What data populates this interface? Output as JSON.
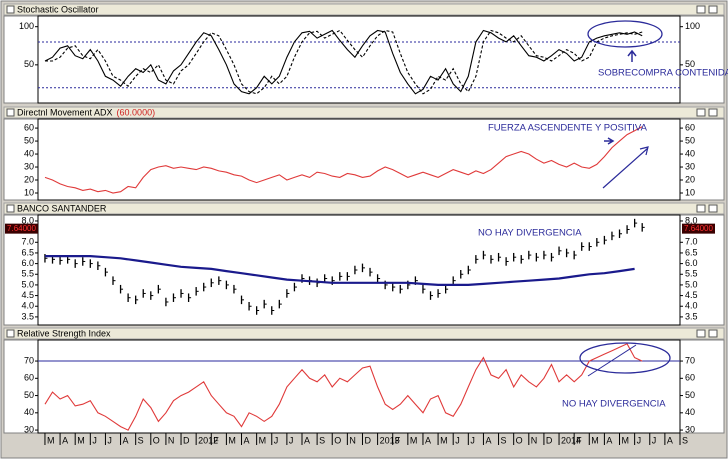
{
  "chart_data": [
    {
      "type": "line",
      "title": "Stochastic Oscillator",
      "x": [
        0,
        0.5,
        1,
        1.5,
        2,
        2.5,
        3,
        3.5,
        4,
        4.5,
        5,
        5.5,
        6,
        6.5,
        7,
        7.5,
        8,
        8.5,
        9,
        9.5,
        10,
        10.5,
        11,
        11.5,
        12,
        12.5,
        13,
        13.5,
        14,
        14.5,
        15,
        15.5,
        16,
        16.5,
        17,
        17.5,
        18,
        18.5,
        19,
        19.5,
        20,
        20.5,
        21,
        21.5,
        22,
        22.5,
        23,
        23.5,
        24,
        24.5,
        25,
        25.5,
        26,
        26.5,
        27,
        27.5,
        28,
        28.5,
        29,
        29.5,
        30,
        30.5,
        31,
        31.5,
        32,
        32.5,
        33,
        33.5,
        34,
        34.5,
        35,
        35.5,
        36,
        36.5,
        37,
        37.5,
        38,
        38.5,
        39,
        39.5
      ],
      "series": [
        {
          "color": "#000000",
          "dash": false,
          "values": [
            55,
            60,
            72,
            75,
            62,
            58,
            70,
            55,
            35,
            30,
            22,
            35,
            45,
            40,
            50,
            30,
            25,
            42,
            50,
            65,
            80,
            92,
            88,
            70,
            50,
            25,
            15,
            12,
            20,
            35,
            25,
            35,
            60,
            80,
            92,
            94,
            85,
            90,
            95,
            82,
            70,
            60,
            75,
            88,
            95,
            93,
            65,
            40,
            25,
            12,
            18,
            35,
            30,
            45,
            25,
            15,
            35,
            80,
            95,
            92,
            85,
            80,
            88,
            75,
            62,
            60,
            55,
            62,
            70,
            65,
            55,
            60,
            80,
            85,
            88,
            90,
            92,
            90,
            93,
            88
          ]
        },
        {
          "color": "#000000",
          "dash": true,
          "values": [
            55,
            55,
            60,
            72,
            75,
            62,
            58,
            70,
            55,
            35,
            30,
            22,
            35,
            45,
            40,
            50,
            30,
            25,
            42,
            50,
            65,
            80,
            92,
            88,
            70,
            50,
            25,
            15,
            12,
            20,
            35,
            25,
            35,
            60,
            80,
            92,
            94,
            85,
            90,
            95,
            82,
            70,
            60,
            75,
            88,
            95,
            93,
            65,
            40,
            25,
            12,
            18,
            35,
            30,
            45,
            25,
            15,
            35,
            80,
            95,
            92,
            85,
            80,
            88,
            75,
            62,
            60,
            55,
            62,
            70,
            65,
            55,
            60,
            80,
            85,
            88,
            90,
            92,
            90,
            93
          ]
        }
      ],
      "hlines": [
        80,
        20
      ],
      "hline_color": "#2a2a9c",
      "xlim": [
        -0.46,
        42
      ],
      "ylim": [
        0,
        114
      ],
      "yticks": [
        100,
        50
      ],
      "annotations": [
        {
          "text": "SOBRECOMPRA CONTENIDA"
        }
      ]
    },
    {
      "type": "line",
      "title": "Directnl Movement ADX",
      "subtitle": "(60.0000)",
      "x": [
        0,
        0.5,
        1,
        1.5,
        2,
        2.5,
        3,
        3.5,
        4,
        4.5,
        5,
        5.5,
        6,
        6.5,
        7,
        7.5,
        8,
        8.5,
        9,
        9.5,
        10,
        10.5,
        11,
        11.5,
        12,
        12.5,
        13,
        13.5,
        14,
        14.5,
        15,
        15.5,
        16,
        16.5,
        17,
        17.5,
        18,
        18.5,
        19,
        19.5,
        20,
        20.5,
        21,
        21.5,
        22,
        22.5,
        23,
        23.5,
        24,
        24.5,
        25,
        25.5,
        26,
        26.5,
        27,
        27.5,
        28,
        28.5,
        29,
        29.5,
        30,
        30.5,
        31,
        31.5,
        32,
        32.5,
        33,
        33.5,
        34,
        34.5,
        35,
        35.5,
        36,
        36.5,
        37,
        37.5,
        38,
        38.5,
        39,
        39.5
      ],
      "series": [
        {
          "color": "#e03a3a",
          "dash": false,
          "values": [
            22,
            20,
            17,
            15,
            14,
            12,
            13,
            11,
            12,
            10,
            11,
            15,
            14,
            22,
            28,
            30,
            31,
            29,
            30,
            29,
            28,
            30,
            29,
            27,
            26,
            24,
            23,
            20,
            18,
            20,
            22,
            24,
            20,
            22,
            24,
            22,
            26,
            25,
            23,
            22,
            25,
            24,
            22,
            23,
            27,
            30,
            28,
            25,
            22,
            24,
            26,
            24,
            22,
            25,
            28,
            26,
            24,
            27,
            25,
            28,
            33,
            38,
            40,
            42,
            40,
            36,
            33,
            35,
            32,
            30,
            33,
            30,
            29,
            32,
            38,
            45,
            50,
            55,
            58,
            61
          ]
        }
      ],
      "xlim": [
        -0.46,
        42
      ],
      "ylim": [
        4.6,
        67
      ],
      "yticks": [
        60,
        50,
        40,
        30,
        20,
        10
      ],
      "annotations": [
        {
          "text": "FUERZA ASCENDENTE Y POSITIVA"
        }
      ]
    },
    {
      "type": "range_bar",
      "title": "BANCO SANTANDER",
      "color": "#000000",
      "x": [
        0,
        0.5,
        1,
        1.5,
        2,
        2.5,
        3,
        3.5,
        4,
        4.5,
        5,
        5.5,
        6,
        6.5,
        7,
        7.5,
        8,
        8.5,
        9,
        9.5,
        10,
        10.5,
        11,
        11.5,
        12,
        12.5,
        13,
        13.5,
        14,
        14.5,
        15,
        15.5,
        16,
        16.5,
        17,
        17.5,
        18,
        18.5,
        19,
        19.5,
        20,
        20.5,
        21,
        21.5,
        22,
        22.5,
        23,
        23.5,
        24,
        24.5,
        25,
        25.5,
        26,
        26.5,
        27,
        27.5,
        28,
        28.5,
        29,
        29.5,
        30,
        30.5,
        31,
        31.5,
        32,
        32.5,
        33,
        33.5,
        34,
        34.5,
        35,
        35.5,
        36,
        36.5,
        37,
        37.5,
        38,
        38.5,
        39,
        39.5
      ],
      "high": [
        6.45,
        6.4,
        6.35,
        6.4,
        6.2,
        6.3,
        6.2,
        6.1,
        5.8,
        5.4,
        5.0,
        4.6,
        4.5,
        4.8,
        4.7,
        5.0,
        4.4,
        4.6,
        4.8,
        4.6,
        4.9,
        5.1,
        5.3,
        5.4,
        5.2,
        5.0,
        4.5,
        4.2,
        4.0,
        4.3,
        4.0,
        4.3,
        4.8,
        5.1,
        5.5,
        5.4,
        5.3,
        5.5,
        5.4,
        5.6,
        5.6,
        5.9,
        6.0,
        5.8,
        5.5,
        5.2,
        5.1,
        5.0,
        5.2,
        5.4,
        5.0,
        4.7,
        4.8,
        5.0,
        5.4,
        5.7,
        5.9,
        6.4,
        6.6,
        6.4,
        6.5,
        6.3,
        6.5,
        6.4,
        6.6,
        6.5,
        6.6,
        6.5,
        6.8,
        6.7,
        6.6,
        7.0,
        7.0,
        7.2,
        7.3,
        7.5,
        7.6,
        7.8,
        8.1,
        7.9
      ],
      "low": [
        6.05,
        6.0,
        5.95,
        6.0,
        5.8,
        5.9,
        5.8,
        5.7,
        5.4,
        5.0,
        4.6,
        4.2,
        4.1,
        4.4,
        4.3,
        4.6,
        4.0,
        4.2,
        4.4,
        4.2,
        4.5,
        4.7,
        4.9,
        5.0,
        4.8,
        4.6,
        4.1,
        3.8,
        3.6,
        3.9,
        3.6,
        3.9,
        4.4,
        4.7,
        5.1,
        5.0,
        4.9,
        5.1,
        5.0,
        5.2,
        5.2,
        5.5,
        5.6,
        5.4,
        5.1,
        4.8,
        4.7,
        4.6,
        4.8,
        5.0,
        4.6,
        4.3,
        4.4,
        4.6,
        5.0,
        5.3,
        5.5,
        6.0,
        6.2,
        6.0,
        6.1,
        5.9,
        6.1,
        6.0,
        6.2,
        6.1,
        6.2,
        6.1,
        6.4,
        6.3,
        6.2,
        6.6,
        6.6,
        6.8,
        6.9,
        7.1,
        7.2,
        7.4,
        7.7,
        7.5
      ],
      "series": [
        {
          "color": "#1a1a8c",
          "dash": false,
          "x": [
            0,
            1,
            2,
            3,
            4,
            5,
            6,
            7,
            8,
            9,
            10,
            11,
            12,
            13,
            14,
            15,
            16,
            17,
            18,
            19,
            20,
            21,
            22,
            23,
            24,
            25,
            26,
            27,
            28,
            29,
            30,
            31,
            32,
            33,
            34,
            35,
            36,
            37,
            38,
            39
          ],
          "values": [
            6.35,
            6.35,
            6.35,
            6.35,
            6.3,
            6.25,
            6.15,
            6.05,
            5.95,
            5.85,
            5.8,
            5.75,
            5.65,
            5.55,
            5.45,
            5.35,
            5.25,
            5.2,
            5.15,
            5.1,
            5.1,
            5.1,
            5.1,
            5.1,
            5.1,
            5.05,
            5.0,
            5.0,
            5.0,
            5.05,
            5.1,
            5.15,
            5.2,
            5.25,
            5.3,
            5.4,
            5.5,
            5.55,
            5.65,
            5.75
          ]
        }
      ],
      "last_label": {
        "value": 7.64,
        "label": "7.64000"
      },
      "xlim": [
        -0.46,
        42
      ],
      "ylim": [
        3.12,
        8.28
      ],
      "yticks": [
        {
          "value": 8,
          "label": "8.0"
        },
        {
          "value": 7,
          "label": "7.0"
        },
        6.5,
        {
          "value": 6,
          "label": "6.0"
        },
        5.5,
        {
          "value": 5,
          "label": "5.0"
        },
        4.5,
        {
          "value": 4,
          "label": "4.0"
        },
        3.5
      ],
      "annotations": [
        {
          "text": "NO HAY DIVERGENCIA"
        }
      ]
    },
    {
      "type": "line",
      "title": "Relative Strength Index",
      "x": [
        0,
        0.5,
        1,
        1.5,
        2,
        2.5,
        3,
        3.5,
        4,
        4.5,
        5,
        5.5,
        6,
        6.5,
        7,
        7.5,
        8,
        8.5,
        9,
        9.5,
        10,
        10.5,
        11,
        11.5,
        12,
        12.5,
        13,
        13.5,
        14,
        14.5,
        15,
        15.5,
        16,
        16.5,
        17,
        17.5,
        18,
        18.5,
        19,
        19.5,
        20,
        20.5,
        21,
        21.5,
        22,
        22.5,
        23,
        23.5,
        24,
        24.5,
        25,
        25.5,
        26,
        26.5,
        27,
        27.5,
        28,
        28.5,
        29,
        29.5,
        30,
        30.5,
        31,
        31.5,
        32,
        32.5,
        33,
        33.5,
        34,
        34.5,
        35,
        35.5,
        36,
        36.5,
        37,
        37.5,
        38,
        38.5,
        39,
        39.5
      ],
      "series": [
        {
          "color": "#e03a3a",
          "dash": false,
          "values": [
            45,
            52,
            48,
            50,
            44,
            45,
            47,
            40,
            38,
            35,
            32,
            30,
            38,
            48,
            43,
            35,
            40,
            47,
            50,
            52,
            55,
            58,
            50,
            45,
            40,
            38,
            32,
            40,
            38,
            35,
            38,
            45,
            55,
            60,
            65,
            60,
            58,
            62,
            55,
            60,
            58,
            62,
            66,
            67,
            55,
            45,
            42,
            45,
            50,
            45,
            40,
            48,
            50,
            40,
            38,
            45,
            55,
            65,
            72,
            62,
            60,
            65,
            55,
            62,
            58,
            55,
            60,
            68,
            58,
            62,
            58,
            62,
            70,
            72,
            74,
            76,
            78,
            80,
            72,
            70
          ]
        }
      ],
      "hlines": [
        70
      ],
      "hline_color": "#2a2a9c",
      "xlim": [
        -0.46,
        42
      ],
      "ylim": [
        28.3,
        82.2
      ],
      "yticks": [
        70,
        60,
        50,
        40,
        30
      ],
      "annotations": [
        {
          "text": "NO HAY DIVERGENCIA"
        }
      ],
      "xticks": [
        {
          "value": 0,
          "label": "M"
        },
        {
          "value": 1,
          "label": "A"
        },
        {
          "value": 2,
          "label": "M"
        },
        {
          "value": 3,
          "label": "J"
        },
        {
          "value": 4,
          "label": "J"
        },
        {
          "value": 5,
          "label": "A"
        },
        {
          "value": 6,
          "label": "S"
        },
        {
          "value": 7,
          "label": "O"
        },
        {
          "value": 8,
          "label": "N"
        },
        {
          "value": 9,
          "label": "D"
        },
        {
          "value": 10,
          "label": "2012"
        },
        {
          "value": 11,
          "label": "F"
        },
        {
          "value": 12,
          "label": "M"
        },
        {
          "value": 13,
          "label": "A"
        },
        {
          "value": 14,
          "label": "M"
        },
        {
          "value": 15,
          "label": "J"
        },
        {
          "value": 16,
          "label": "J"
        },
        {
          "value": 17,
          "label": "A"
        },
        {
          "value": 18,
          "label": "S"
        },
        {
          "value": 19,
          "label": "O"
        },
        {
          "value": 20,
          "label": "N"
        },
        {
          "value": 21,
          "label": "D"
        },
        {
          "value": 22,
          "label": "2013"
        },
        {
          "value": 23,
          "label": "F"
        },
        {
          "value": 24,
          "label": "M"
        },
        {
          "value": 25,
          "label": "A"
        },
        {
          "value": 26,
          "label": "M"
        },
        {
          "value": 27,
          "label": "J"
        },
        {
          "value": 28,
          "label": "J"
        },
        {
          "value": 29,
          "label": "A"
        },
        {
          "value": 30,
          "label": "S"
        },
        {
          "value": 31,
          "label": "O"
        },
        {
          "value": 32,
          "label": "N"
        },
        {
          "value": 33,
          "label": "D"
        },
        {
          "value": 34,
          "label": "2014"
        },
        {
          "value": 35,
          "label": "F"
        },
        {
          "value": 36,
          "label": "M"
        },
        {
          "value": 37,
          "label": "A"
        },
        {
          "value": 38,
          "label": "M"
        },
        {
          "value": 39,
          "label": "J"
        },
        {
          "value": 40,
          "label": "J"
        },
        {
          "value": 41,
          "label": "A"
        },
        {
          "value": 42,
          "label": "S"
        }
      ]
    }
  ]
}
